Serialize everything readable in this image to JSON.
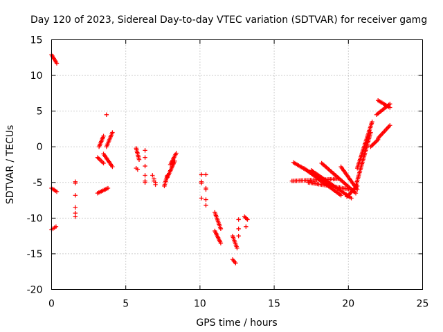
{
  "chart_data": {
    "type": "scatter",
    "title": "Day 120 of 2023, Sidereal Day-to-day VTEC variation (SDTVAR) for receiver gamg",
    "xlabel": "GPS time / hours",
    "ylabel": "SDTVAR / TECUs",
    "xlim": [
      0,
      25
    ],
    "ylim": [
      -20,
      15
    ],
    "xticks": [
      0,
      5,
      10,
      15,
      20,
      25
    ],
    "yticks": [
      -20,
      -15,
      -10,
      -5,
      0,
      5,
      10,
      15
    ],
    "grid": true,
    "marker": "+",
    "colors": {
      "series": "#ff0000",
      "grid": "#a0a0a0",
      "axes": "#000000"
    },
    "series": [
      {
        "name": "SDTVAR",
        "segments": [
          [
            [
              0.0,
              12.9
            ],
            [
              0.35,
              11.7
            ]
          ],
          [
            [
              0.0,
              -5.8
            ],
            [
              0.35,
              -6.3
            ]
          ],
          [
            [
              0.0,
              -11.6
            ],
            [
              0.3,
              -11.2
            ]
          ],
          [
            [
              3.1,
              -1.5
            ],
            [
              3.5,
              -2.3
            ]
          ],
          [
            [
              3.2,
              0.0
            ],
            [
              3.5,
              1.5
            ]
          ],
          [
            [
              3.5,
              -1.0
            ],
            [
              4.1,
              -2.8
            ]
          ],
          [
            [
              3.7,
              0.0
            ],
            [
              4.1,
              2.0
            ]
          ],
          [
            [
              3.1,
              -6.5
            ],
            [
              3.8,
              -5.8
            ]
          ],
          [
            [
              5.7,
              -0.2
            ],
            [
              5.9,
              -1.8
            ]
          ],
          [
            [
              7.6,
              -5.5
            ],
            [
              7.8,
              -4.0
            ]
          ],
          [
            [
              7.8,
              -4.3
            ],
            [
              8.3,
              -2.0
            ]
          ],
          [
            [
              8.0,
              -2.5
            ],
            [
              8.4,
              -0.9
            ]
          ],
          [
            [
              11.0,
              -9.2
            ],
            [
              11.4,
              -11.5
            ]
          ],
          [
            [
              11.0,
              -11.8
            ],
            [
              11.4,
              -13.5
            ]
          ],
          [
            [
              12.2,
              -15.8
            ],
            [
              12.4,
              -16.3
            ]
          ],
          [
            [
              12.2,
              -12.5
            ],
            [
              12.5,
              -14.2
            ]
          ],
          [
            [
              13.0,
              -9.8
            ],
            [
              13.2,
              -10.2
            ]
          ],
          [
            [
              16.2,
              -4.8
            ],
            [
              19.3,
              -4.5
            ]
          ],
          [
            [
              16.3,
              -2.2
            ],
            [
              19.0,
              -5.5
            ]
          ],
          [
            [
              17.0,
              -3.0
            ],
            [
              19.5,
              -6.8
            ]
          ],
          [
            [
              17.5,
              -3.3
            ],
            [
              20.2,
              -7.2
            ]
          ],
          [
            [
              17.3,
              -5.0
            ],
            [
              20.2,
              -6.0
            ]
          ],
          [
            [
              18.2,
              -2.3
            ],
            [
              20.5,
              -6.5
            ]
          ],
          [
            [
              19.5,
              -2.8
            ],
            [
              20.6,
              -6.0
            ]
          ],
          [
            [
              19.9,
              -7.0
            ],
            [
              20.6,
              -5.5
            ]
          ],
          [
            [
              20.5,
              -5.5
            ],
            [
              21.5,
              2.0
            ]
          ],
          [
            [
              20.6,
              -3.0
            ],
            [
              21.6,
              3.5
            ]
          ],
          [
            [
              21.5,
              0.0
            ],
            [
              22.0,
              1.0
            ]
          ],
          [
            [
              22.0,
              1.2
            ],
            [
              22.8,
              3.0
            ]
          ],
          [
            [
              22.0,
              6.5
            ],
            [
              22.8,
              5.5
            ]
          ],
          [
            [
              21.9,
              4.5
            ],
            [
              22.8,
              6.0
            ]
          ]
        ],
        "points": [
          [
            3.7,
            4.5
          ],
          [
            1.6,
            -4.9
          ],
          [
            1.6,
            -5.1
          ],
          [
            1.6,
            -6.8
          ],
          [
            1.6,
            -8.5
          ],
          [
            1.6,
            -9.3
          ],
          [
            1.6,
            -9.8
          ],
          [
            5.7,
            -3.0
          ],
          [
            5.8,
            -3.2
          ],
          [
            6.3,
            -0.5
          ],
          [
            6.3,
            -1.5
          ],
          [
            6.3,
            -2.7
          ],
          [
            6.3,
            -4.0
          ],
          [
            6.3,
            -4.8
          ],
          [
            6.3,
            -5.0
          ],
          [
            6.8,
            -4.0
          ],
          [
            6.9,
            -4.5
          ],
          [
            6.9,
            -4.8
          ],
          [
            7.0,
            -5.0
          ],
          [
            7.0,
            -5.3
          ],
          [
            10.1,
            -3.9
          ],
          [
            10.1,
            -4.9
          ],
          [
            10.1,
            -5.1
          ],
          [
            10.1,
            -7.2
          ],
          [
            10.4,
            -3.9
          ],
          [
            10.4,
            -5.8
          ],
          [
            10.4,
            -6.0
          ],
          [
            10.4,
            -7.4
          ],
          [
            10.4,
            -8.2
          ],
          [
            12.6,
            -10.2
          ],
          [
            12.6,
            -11.5
          ],
          [
            12.6,
            -12.5
          ],
          [
            13.1,
            -11.2
          ]
        ]
      }
    ]
  }
}
